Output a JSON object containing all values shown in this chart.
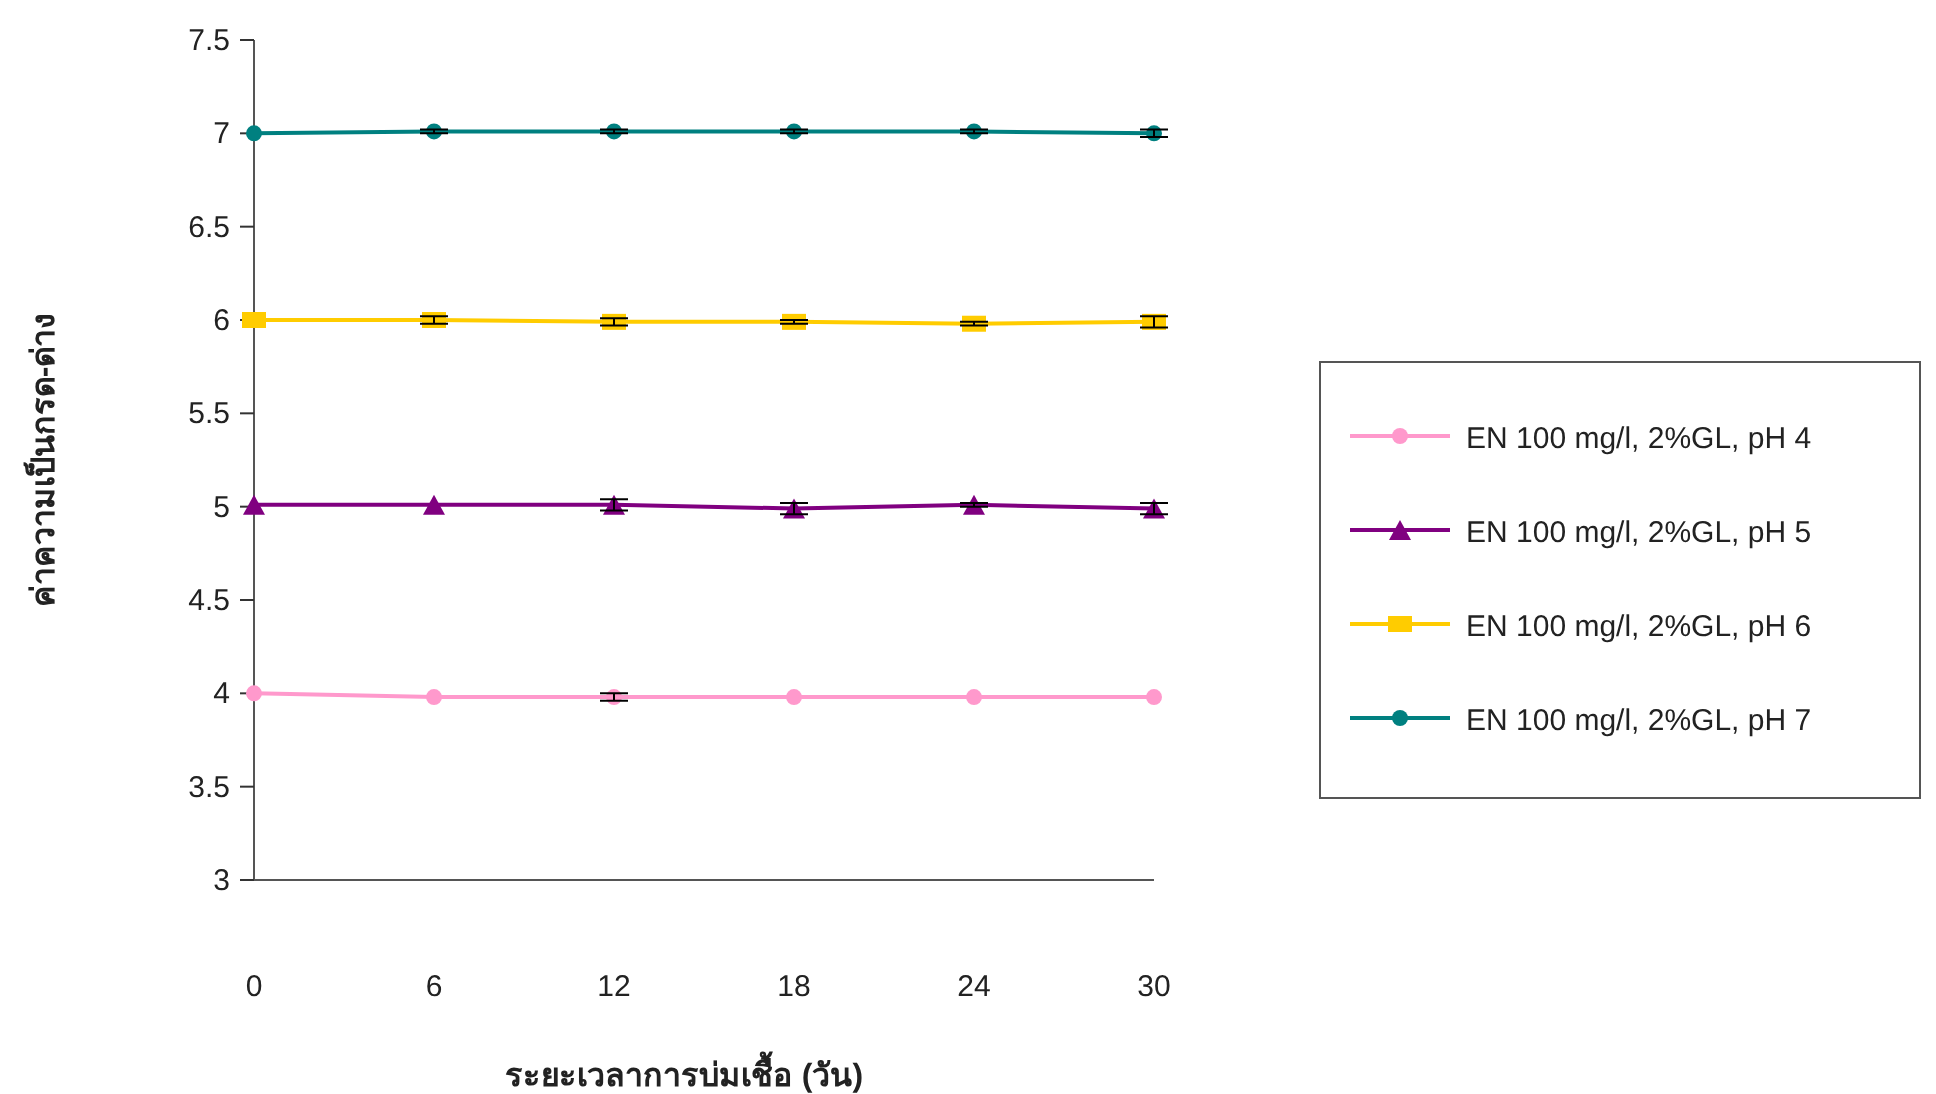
{
  "chart_data": {
    "type": "line",
    "xlabel": "ระยะเวลาการบ่มเชื้อ (วัน)",
    "ylabel": "ค่าความเป็นกรด-ด่าง",
    "x": [
      0,
      6,
      12,
      18,
      24,
      30
    ],
    "xlim": [
      0,
      30
    ],
    "xticks": [
      0,
      6,
      12,
      18,
      24,
      30
    ],
    "ylim": [
      3,
      7.5
    ],
    "yticks": [
      3,
      3.5,
      4,
      4.5,
      5,
      5.5,
      6,
      6.5,
      7,
      7.5
    ],
    "grid": false,
    "legend": "right",
    "series": [
      {
        "name": "EN 100 mg/l, 2%GL, pH 4",
        "color": "#ff99cc",
        "marker": "circle",
        "values": [
          4.0,
          3.98,
          3.98,
          3.98,
          3.98,
          3.98
        ],
        "errors": [
          null,
          null,
          0.02,
          null,
          null,
          null
        ]
      },
      {
        "name": "EN 100 mg/l, 2%GL, pH 5",
        "color": "#800080",
        "marker": "triangle",
        "values": [
          5.01,
          5.01,
          5.01,
          4.99,
          5.01,
          4.99
        ],
        "errors": [
          null,
          null,
          0.03,
          0.03,
          0.01,
          0.03
        ]
      },
      {
        "name": "EN 100 mg/l, 2%GL, pH 6",
        "color": "#ffcc00",
        "marker": "square",
        "values": [
          6.0,
          6.0,
          5.99,
          5.99,
          5.98,
          5.99
        ],
        "errors": [
          null,
          0.02,
          0.02,
          0.01,
          0.01,
          0.03
        ]
      },
      {
        "name": "EN 100 mg/l, 2%GL, pH 7",
        "color": "#008080",
        "marker": "circle",
        "values": [
          7.0,
          7.01,
          7.01,
          7.01,
          7.01,
          7.0
        ],
        "errors": [
          null,
          0.01,
          0.01,
          0.01,
          0.01,
          0.02
        ]
      }
    ]
  }
}
